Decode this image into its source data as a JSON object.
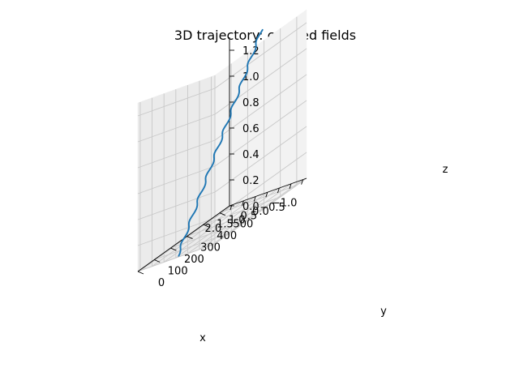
{
  "chart_data": {
    "type": "line",
    "projection": "3d",
    "title": "3D trajectory: crossed fields",
    "xlabel": "x",
    "ylabel": "y",
    "zlabel": "z",
    "xlim": [
      -1.15,
      2.1
    ],
    "ylim": [
      0,
      560
    ],
    "zlim": [
      0,
      1.3
    ],
    "x_ticks": [
      -1.0,
      -0.5,
      0.0,
      0.5,
      1.0,
      1.5,
      2.0
    ],
    "x_tick_labels": [
      "−1.0",
      "−0.5",
      "0.0",
      "0.5",
      "1.0",
      "1.5",
      "2.0"
    ],
    "y_ticks": [
      0,
      100,
      200,
      300,
      400,
      500
    ],
    "y_tick_labels": [
      "0",
      "100",
      "200",
      "300",
      "400",
      "500"
    ],
    "z_ticks": [
      0.0,
      0.2,
      0.4,
      0.6,
      0.8,
      1.0,
      1.2
    ],
    "z_tick_labels": [
      "0.0",
      "0.2",
      "0.4",
      "0.6",
      "0.8",
      "1.0",
      "1.2"
    ],
    "grid": true,
    "series": [
      {
        "color": "#1f77b4",
        "points": [
          {
            "x": 0.5,
            "y": 18,
            "z": 0.0
          },
          {
            "x": 0.5,
            "y": 530,
            "z": 1.28
          }
        ],
        "cycles": 10
      }
    ]
  }
}
